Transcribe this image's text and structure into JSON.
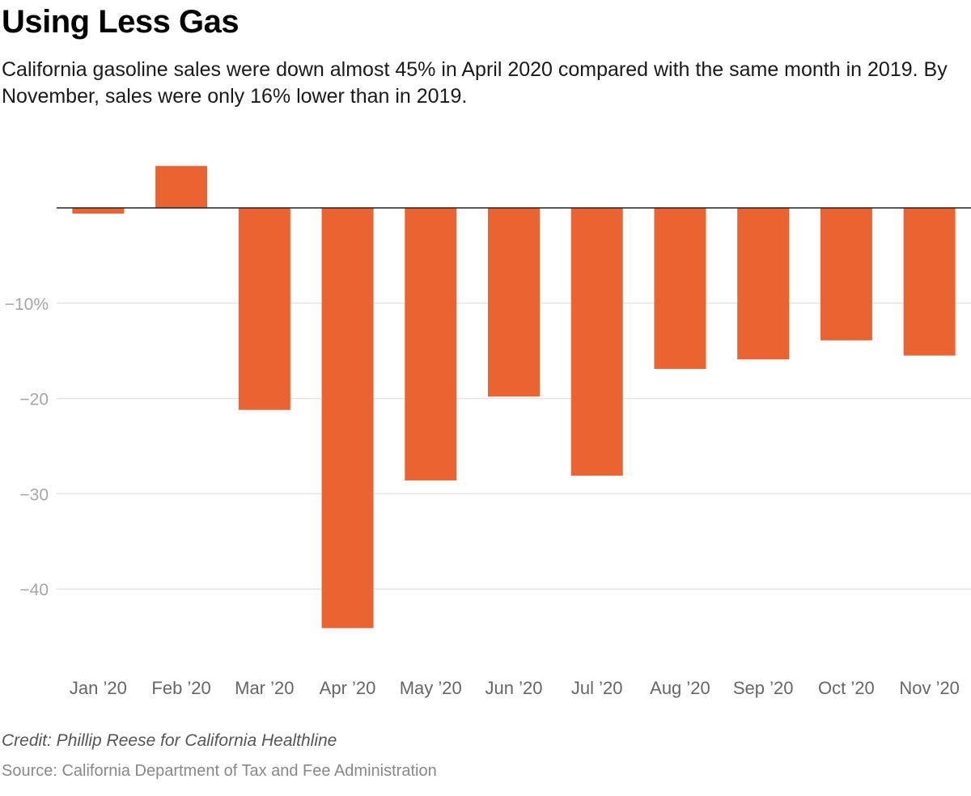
{
  "header": {
    "title": "Using Less Gas",
    "subtitle": "California gasoline sales were down almost 45% in April 2020 compared with the same month in 2019. By November, sales were only 16% lower than in 2019."
  },
  "footer": {
    "credit": "Credit: Phillip Reese for California Healthline",
    "source": "Source: California Department of Tax and Fee Administration"
  },
  "colors": {
    "bar": "#E96431",
    "grid": "#e4e4e4",
    "zero_line": "#222222",
    "tick_text": "#a6a6a6",
    "category_text": "#666666"
  },
  "chart_data": {
    "type": "bar",
    "title": "Using Less Gas",
    "xlabel": "",
    "ylabel": "",
    "categories": [
      "Jan ’20",
      "Feb ’20",
      "Mar ’20",
      "Apr ’20",
      "May ’20",
      "Jun ’20",
      "Jul ’20",
      "Aug ’20",
      "Sep ’20",
      "Oct ’20",
      "Nov ’20"
    ],
    "values": [
      -0.6,
      4.4,
      -21.2,
      -44.1,
      -28.6,
      -19.8,
      -28.1,
      -16.9,
      -15.9,
      -13.9,
      -15.5
    ],
    "ylim": [
      -47,
      6
    ],
    "yticks": [
      -10,
      -20,
      -30,
      -40
    ],
    "ytick_labels": [
      "−10%",
      "−20",
      "−30",
      "−40"
    ],
    "grid": true,
    "legend": "none"
  }
}
